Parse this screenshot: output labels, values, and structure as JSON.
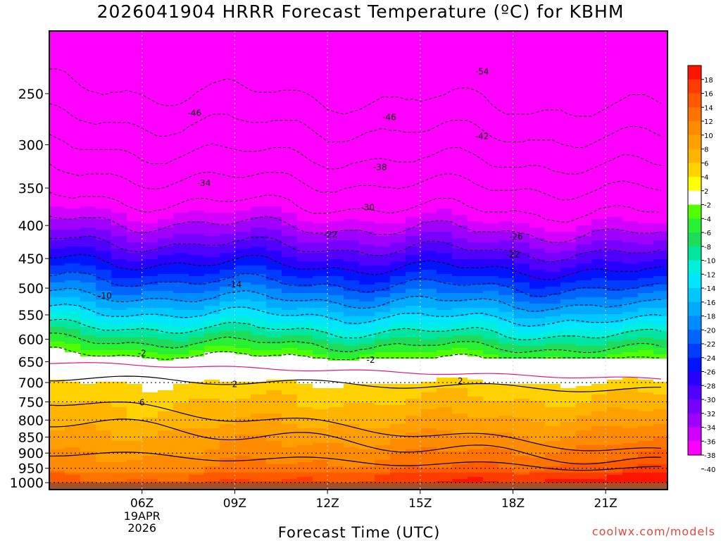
{
  "chart_data": {
    "type": "heatmap",
    "title": "2026041904 HRRR Forecast Temperature (ºC) for KBHM",
    "xlabel": "Forecast Time (UTC)",
    "ylabel": "",
    "credit": "coolwx.com/models",
    "x_ticks": [
      "06Z",
      "09Z",
      "12Z",
      "15Z",
      "18Z",
      "21Z"
    ],
    "x_date_label": [
      "19APR",
      "2026"
    ],
    "x_range_hours": [
      3,
      23
    ],
    "y_ticks": [
      250,
      300,
      350,
      400,
      450,
      500,
      550,
      600,
      650,
      700,
      750,
      800,
      850,
      900,
      950,
      1000
    ],
    "y_range_hpa": [
      200,
      1025
    ],
    "colorbar_levels": [
      18,
      16,
      14,
      12,
      10,
      8,
      6,
      4,
      2,
      -2,
      -4,
      -6,
      -8,
      -10,
      -12,
      -14,
      -16,
      -18,
      -20,
      -22,
      -24,
      -26,
      -28,
      -30,
      -32,
      -34,
      -36,
      -38,
      -40
    ],
    "colorbar_colors": {
      "warm": [
        "#ff1400",
        "#ff3c00",
        "#ff5a00",
        "#ff7300",
        "#ff8c00",
        "#ffa000",
        "#ffb400",
        "#ffd200",
        "#ffff00"
      ],
      "neutral": "#ffffff",
      "cold": [
        "#50ff00",
        "#28f032",
        "#1edc5a",
        "#00e6a0",
        "#00f0dc",
        "#00e6ff",
        "#00c8ff",
        "#00aaff",
        "#008cff",
        "#0064ff",
        "#003cff",
        "#0014ff",
        "#2800ff",
        "#5000ff",
        "#7800ff",
        "#a000ff",
        "#d200ff",
        "#ff00ff"
      ]
    },
    "contour_labels": [
      {
        "label": "-54",
        "time": 17.0,
        "p": 231
      },
      {
        "label": "-46",
        "time": 7.7,
        "p": 268
      },
      {
        "label": "-46",
        "time": 14.0,
        "p": 272
      },
      {
        "label": "-42",
        "time": 17.0,
        "p": 291
      },
      {
        "label": "-38",
        "time": 13.7,
        "p": 325
      },
      {
        "label": "-34",
        "time": 8.0,
        "p": 344
      },
      {
        "label": "-30",
        "time": 13.3,
        "p": 375
      },
      {
        "label": "-22",
        "time": 12.1,
        "p": 413
      },
      {
        "label": "-26",
        "time": 18.1,
        "p": 416
      },
      {
        "label": "-22",
        "time": 18.0,
        "p": 444
      },
      {
        "label": "-14",
        "time": 9.0,
        "p": 494
      },
      {
        "label": "-10",
        "time": 4.8,
        "p": 514
      },
      {
        "label": "-2",
        "time": 6.0,
        "p": 631
      },
      {
        "label": "-2",
        "time": 13.4,
        "p": 646
      },
      {
        "label": "2",
        "time": 9.0,
        "p": 704
      },
      {
        "label": "2",
        "time": 16.3,
        "p": 696
      },
      {
        "label": "6",
        "time": 6.0,
        "p": 752
      }
    ]
  }
}
